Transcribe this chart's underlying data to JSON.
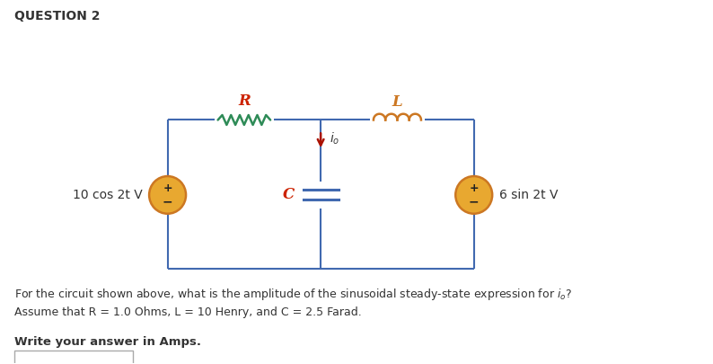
{
  "title": "QUESTION 2",
  "resistor_label": "R",
  "inductor_label": "L",
  "capacitor_label": "C",
  "current_label_i": "i",
  "current_label_sub": "o",
  "left_source_label": "10 cos 2t V",
  "right_source_label": "6 sin 2t V",
  "question_text": "For the circuit shown above, what is the amplitude of the sinusoidal steady-state expression for i",
  "question_sub": "o",
  "question_end": "?",
  "assume_text": "Assume that R = 1.0 Ohms, L = 10 Henry, and C = 2.5 Farad.",
  "answer_prompt": "Write your answer in Amps.",
  "wire_color": "#4169b0",
  "resistor_color": "#2e8b57",
  "inductor_color": "#cc7722",
  "capacitor_color": "#4169b0",
  "label_color_R": "#cc2200",
  "label_color_L": "#cc7722",
  "label_color_C": "#cc2200",
  "current_arrow_color": "#aa1100",
  "source_fill": "#e8a830",
  "source_edge": "#cc7722",
  "bg_color": "#ffffff",
  "text_color": "#333333"
}
